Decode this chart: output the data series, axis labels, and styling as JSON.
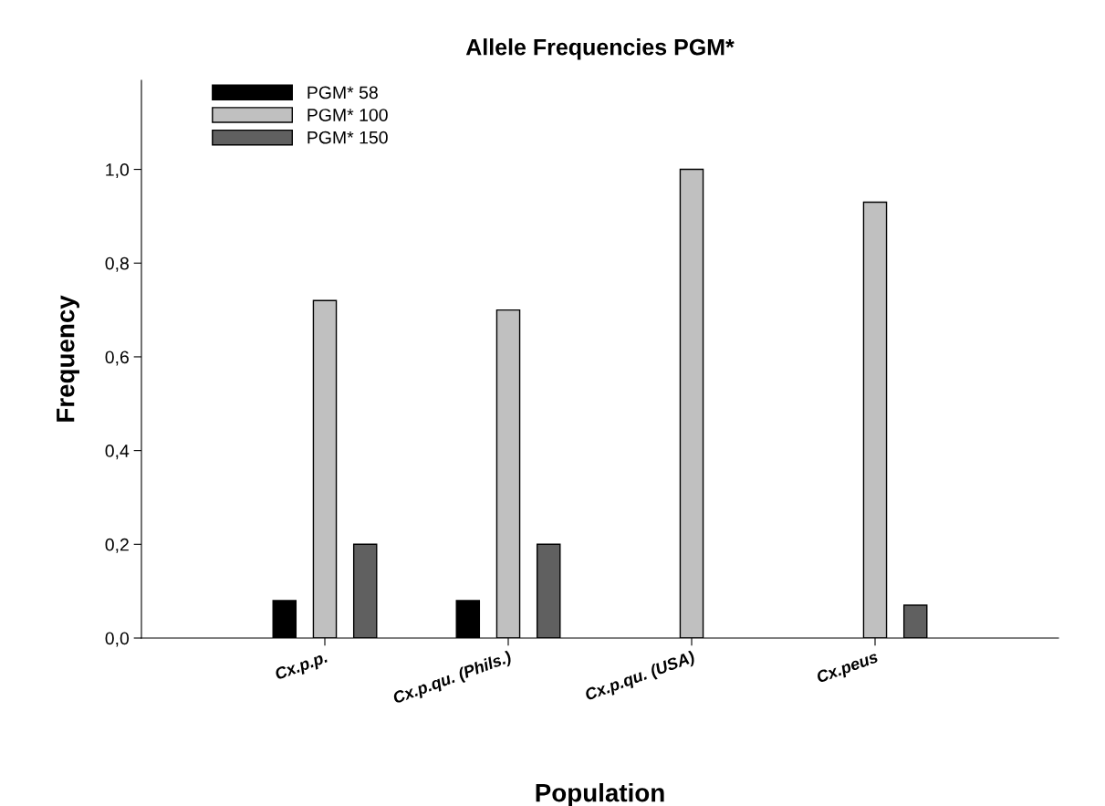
{
  "chart_data": {
    "type": "bar",
    "title": "Allele Frequencies PGM*",
    "xlabel": "Population",
    "ylabel": "Frequency",
    "categories": [
      "Cx.p.p.",
      "Cx.p.qu. (Phils.)",
      "Cx.p.qu. (USA)",
      "Cx.peus"
    ],
    "series": [
      {
        "name": "PGM* 58",
        "color": "#000000",
        "values": [
          0.08,
          0.08,
          null,
          null
        ]
      },
      {
        "name": "PGM* 100",
        "color": "#c0c0c0",
        "values": [
          0.72,
          0.7,
          1.0,
          0.93
        ]
      },
      {
        "name": "PGM* 150",
        "color": "#606060",
        "values": [
          0.2,
          0.2,
          null,
          0.07
        ]
      }
    ],
    "ylim": [
      0,
      1.19
    ],
    "yticks": [
      {
        "value": 0,
        "label": "0,0"
      },
      {
        "value": 0.2,
        "label": "0,2"
      },
      {
        "value": 0.4,
        "label": "0,4"
      },
      {
        "value": 0.6,
        "label": "0,6"
      },
      {
        "value": 0.8,
        "label": "0,8"
      },
      {
        "value": 1.0,
        "label": "1,0"
      }
    ],
    "grid": false,
    "legend": "top left"
  }
}
